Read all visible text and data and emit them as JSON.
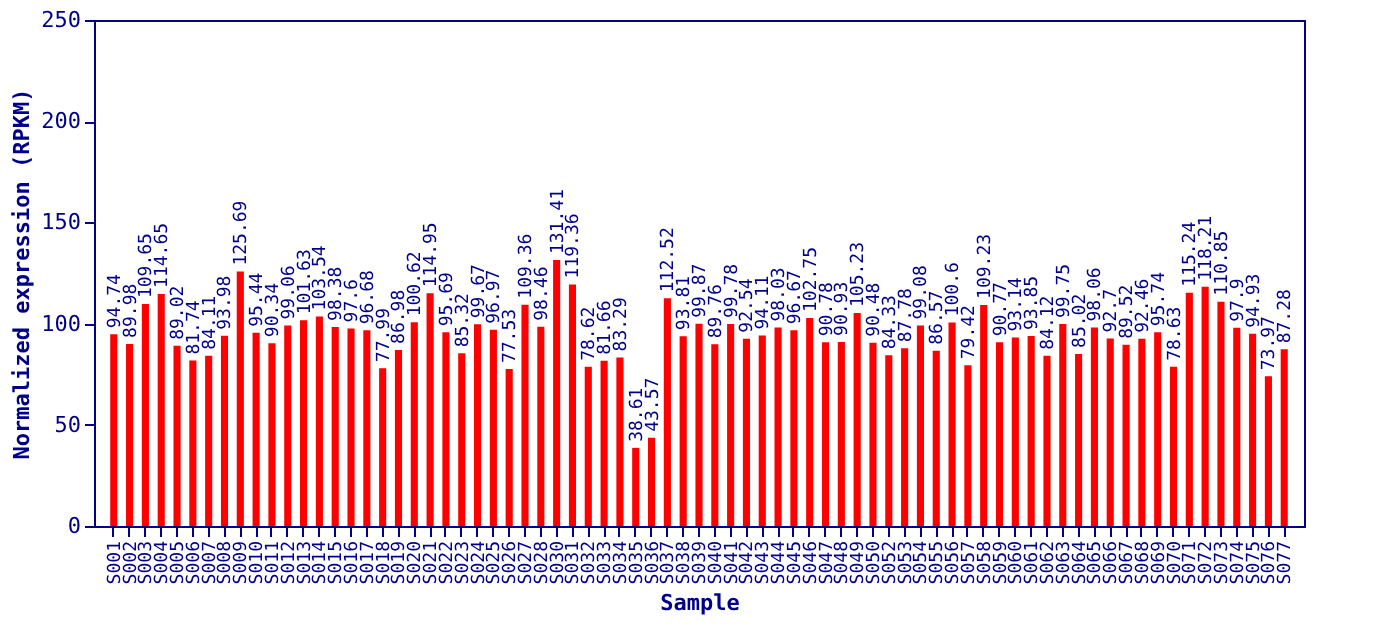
{
  "chart_data": {
    "type": "bar",
    "xlabel": "Sample",
    "ylabel": "Normalized expression (RPKM)",
    "categories": [
      "S001",
      "S002",
      "S003",
      "S004",
      "S005",
      "S006",
      "S007",
      "S008",
      "S009",
      "S010",
      "S011",
      "S012",
      "S013",
      "S014",
      "S015",
      "S016",
      "S017",
      "S018",
      "S019",
      "S020",
      "S021",
      "S022",
      "S023",
      "S024",
      "S025",
      "S026",
      "S027",
      "S028",
      "S030",
      "S031",
      "S032",
      "S033",
      "S034",
      "S035",
      "S036",
      "S037",
      "S038",
      "S039",
      "S040",
      "S041",
      "S042",
      "S043",
      "S044",
      "S045",
      "S046",
      "S047",
      "S048",
      "S049",
      "S050",
      "S052",
      "S053",
      "S054",
      "S055",
      "S056",
      "S057",
      "S058",
      "S059",
      "S060",
      "S061",
      "S062",
      "S063",
      "S064",
      "S065",
      "S066",
      "S067",
      "S068",
      "S069",
      "S070",
      "S071",
      "S072",
      "S073",
      "S074",
      "S075",
      "S076",
      "S077"
    ],
    "values": [
      94.74,
      89.98,
      109.65,
      114.65,
      89.02,
      81.74,
      84.11,
      93.98,
      125.69,
      95.44,
      90.34,
      99.06,
      101.63,
      103.54,
      98.38,
      97.6,
      96.68,
      77.99,
      86.98,
      100.62,
      114.95,
      95.69,
      85.32,
      99.67,
      96.97,
      77.53,
      109.36,
      98.46,
      131.41,
      119.36,
      78.62,
      81.66,
      83.29,
      38.61,
      43.57,
      112.52,
      93.81,
      99.87,
      89.76,
      99.78,
      92.54,
      94.11,
      98.03,
      96.67,
      102.75,
      90.78,
      90.93,
      105.23,
      90.48,
      84.33,
      87.78,
      99.08,
      86.57,
      100.6,
      79.42,
      109.23,
      90.77,
      93.14,
      93.85,
      84.12,
      99.75,
      85.02,
      98.06,
      92.7,
      89.52,
      92.46,
      95.74,
      78.63,
      115.24,
      118.21,
      110.85,
      97.9,
      94.93,
      73.97,
      87.28
    ],
    "color": "#ff0000",
    "ylim": [
      0,
      250
    ],
    "yticks": [
      0,
      50,
      100,
      150,
      200,
      250
    ],
    "data_labels": true,
    "grid": false
  }
}
